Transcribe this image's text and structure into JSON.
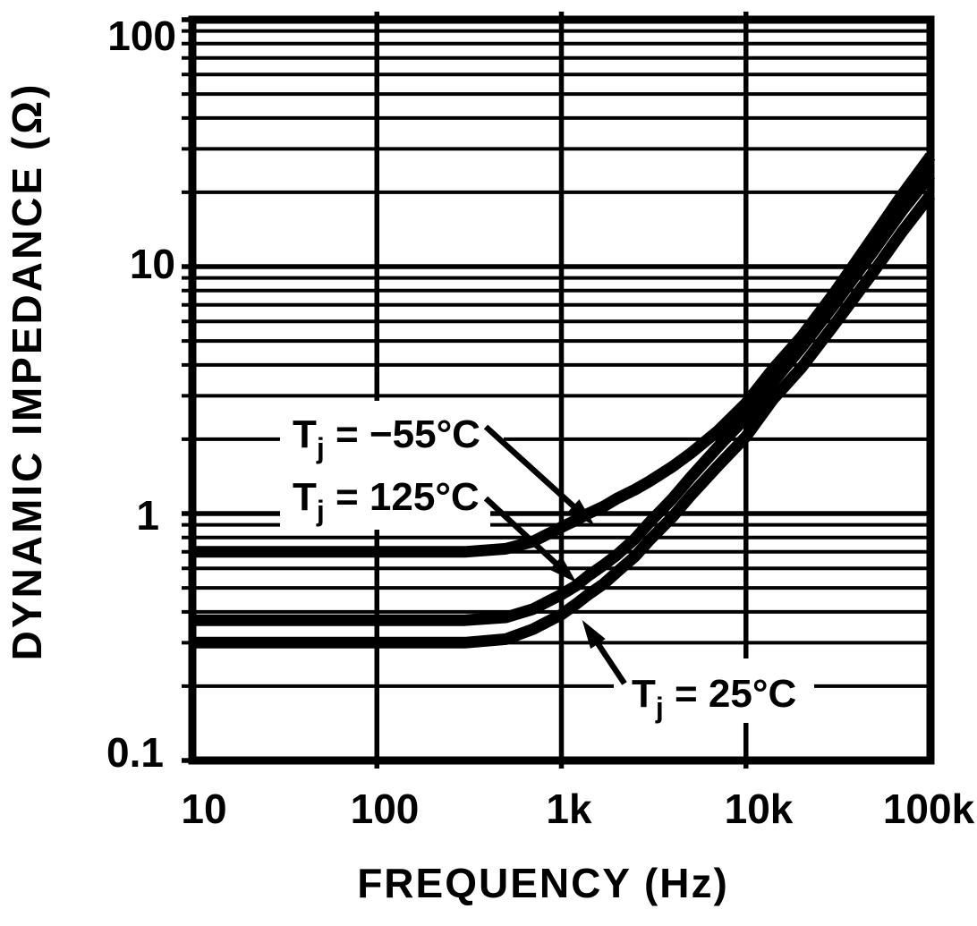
{
  "colors": {
    "ink": "#000000",
    "paper": "#ffffff"
  },
  "chart_data": {
    "type": "line",
    "title": "",
    "xlabel": "FREQUENCY (Hz)",
    "ylabel": "DYNAMIC IMPEDANCE (Ω)",
    "x_scale": "log",
    "y_scale": "log",
    "xlim": [
      10,
      100000
    ],
    "ylim": [
      0.1,
      100
    ],
    "grid": {
      "horizontal_minor_per_decade": [
        2,
        3,
        4,
        5,
        6,
        7,
        8,
        9
      ],
      "vertical_lines": "decades only",
      "style": "solid black on white"
    },
    "x_ticks": [
      {
        "value": 10,
        "label": "10"
      },
      {
        "value": 100,
        "label": "100"
      },
      {
        "value": 1000,
        "label": "1k"
      },
      {
        "value": 10000,
        "label": "10k"
      },
      {
        "value": 100000,
        "label": "100k"
      }
    ],
    "y_ticks": [
      {
        "value": 100,
        "label": "100"
      },
      {
        "value": 10,
        "label": "10"
      },
      {
        "value": 1,
        "label": "1"
      },
      {
        "value": 0.1,
        "label": "0.1"
      }
    ],
    "series": [
      {
        "name": "Tj = −55°C",
        "points": [
          [
            10,
            0.7
          ],
          [
            50,
            0.7
          ],
          [
            100,
            0.7
          ],
          [
            200,
            0.7
          ],
          [
            300,
            0.7
          ],
          [
            500,
            0.72
          ],
          [
            700,
            0.77
          ],
          [
            1000,
            0.88
          ],
          [
            1200,
            0.94
          ],
          [
            1400,
            1.0
          ],
          [
            1700,
            1.07
          ],
          [
            2000,
            1.15
          ],
          [
            2500,
            1.25
          ],
          [
            3000,
            1.35
          ],
          [
            4000,
            1.55
          ],
          [
            5000,
            1.75
          ],
          [
            7000,
            2.15
          ],
          [
            10000,
            2.8
          ],
          [
            14000,
            3.85
          ],
          [
            20000,
            5.2
          ],
          [
            30000,
            7.8
          ],
          [
            50000,
            13.5
          ],
          [
            70000,
            19.5
          ],
          [
            100000,
            28.0
          ]
        ]
      },
      {
        "name": "Tj = 125°C",
        "points": [
          [
            10,
            0.37
          ],
          [
            50,
            0.37
          ],
          [
            100,
            0.37
          ],
          [
            200,
            0.37
          ],
          [
            300,
            0.37
          ],
          [
            500,
            0.38
          ],
          [
            700,
            0.41
          ],
          [
            1000,
            0.47
          ],
          [
            1200,
            0.51
          ],
          [
            1400,
            0.56
          ],
          [
            1700,
            0.62
          ],
          [
            2000,
            0.68
          ],
          [
            2500,
            0.79
          ],
          [
            3000,
            0.92
          ],
          [
            4000,
            1.15
          ],
          [
            5000,
            1.4
          ],
          [
            7000,
            1.85
          ],
          [
            10000,
            2.45
          ],
          [
            14000,
            3.4
          ],
          [
            20000,
            4.7
          ],
          [
            30000,
            7.0
          ],
          [
            50000,
            11.8
          ],
          [
            70000,
            16.8
          ],
          [
            100000,
            23.5
          ]
        ]
      },
      {
        "name": "Tj = 25°C",
        "points": [
          [
            10,
            0.3
          ],
          [
            50,
            0.3
          ],
          [
            100,
            0.3
          ],
          [
            200,
            0.3
          ],
          [
            300,
            0.3
          ],
          [
            500,
            0.31
          ],
          [
            700,
            0.34
          ],
          [
            1000,
            0.39
          ],
          [
            1200,
            0.43
          ],
          [
            1400,
            0.47
          ],
          [
            1700,
            0.52
          ],
          [
            2000,
            0.58
          ],
          [
            2500,
            0.67
          ],
          [
            3000,
            0.78
          ],
          [
            4000,
            0.97
          ],
          [
            5000,
            1.18
          ],
          [
            7000,
            1.55
          ],
          [
            10000,
            2.05
          ],
          [
            14000,
            2.9
          ],
          [
            20000,
            3.9
          ],
          [
            30000,
            5.8
          ],
          [
            50000,
            9.7
          ],
          [
            70000,
            13.8
          ],
          [
            100000,
            19.5
          ]
        ]
      }
    ],
    "annotations": [
      {
        "pre": "T",
        "sub": "j",
        "post": " = −55°C",
        "target_series": "Tj = −55°C"
      },
      {
        "pre": "T",
        "sub": "j",
        "post": " = 125°C",
        "target_series": "Tj = 125°C"
      },
      {
        "pre": "T",
        "sub": "j",
        "post": " = 25°C",
        "target_series": "Tj = 25°C"
      }
    ],
    "legend": "none (arrow-labeled curves)"
  }
}
